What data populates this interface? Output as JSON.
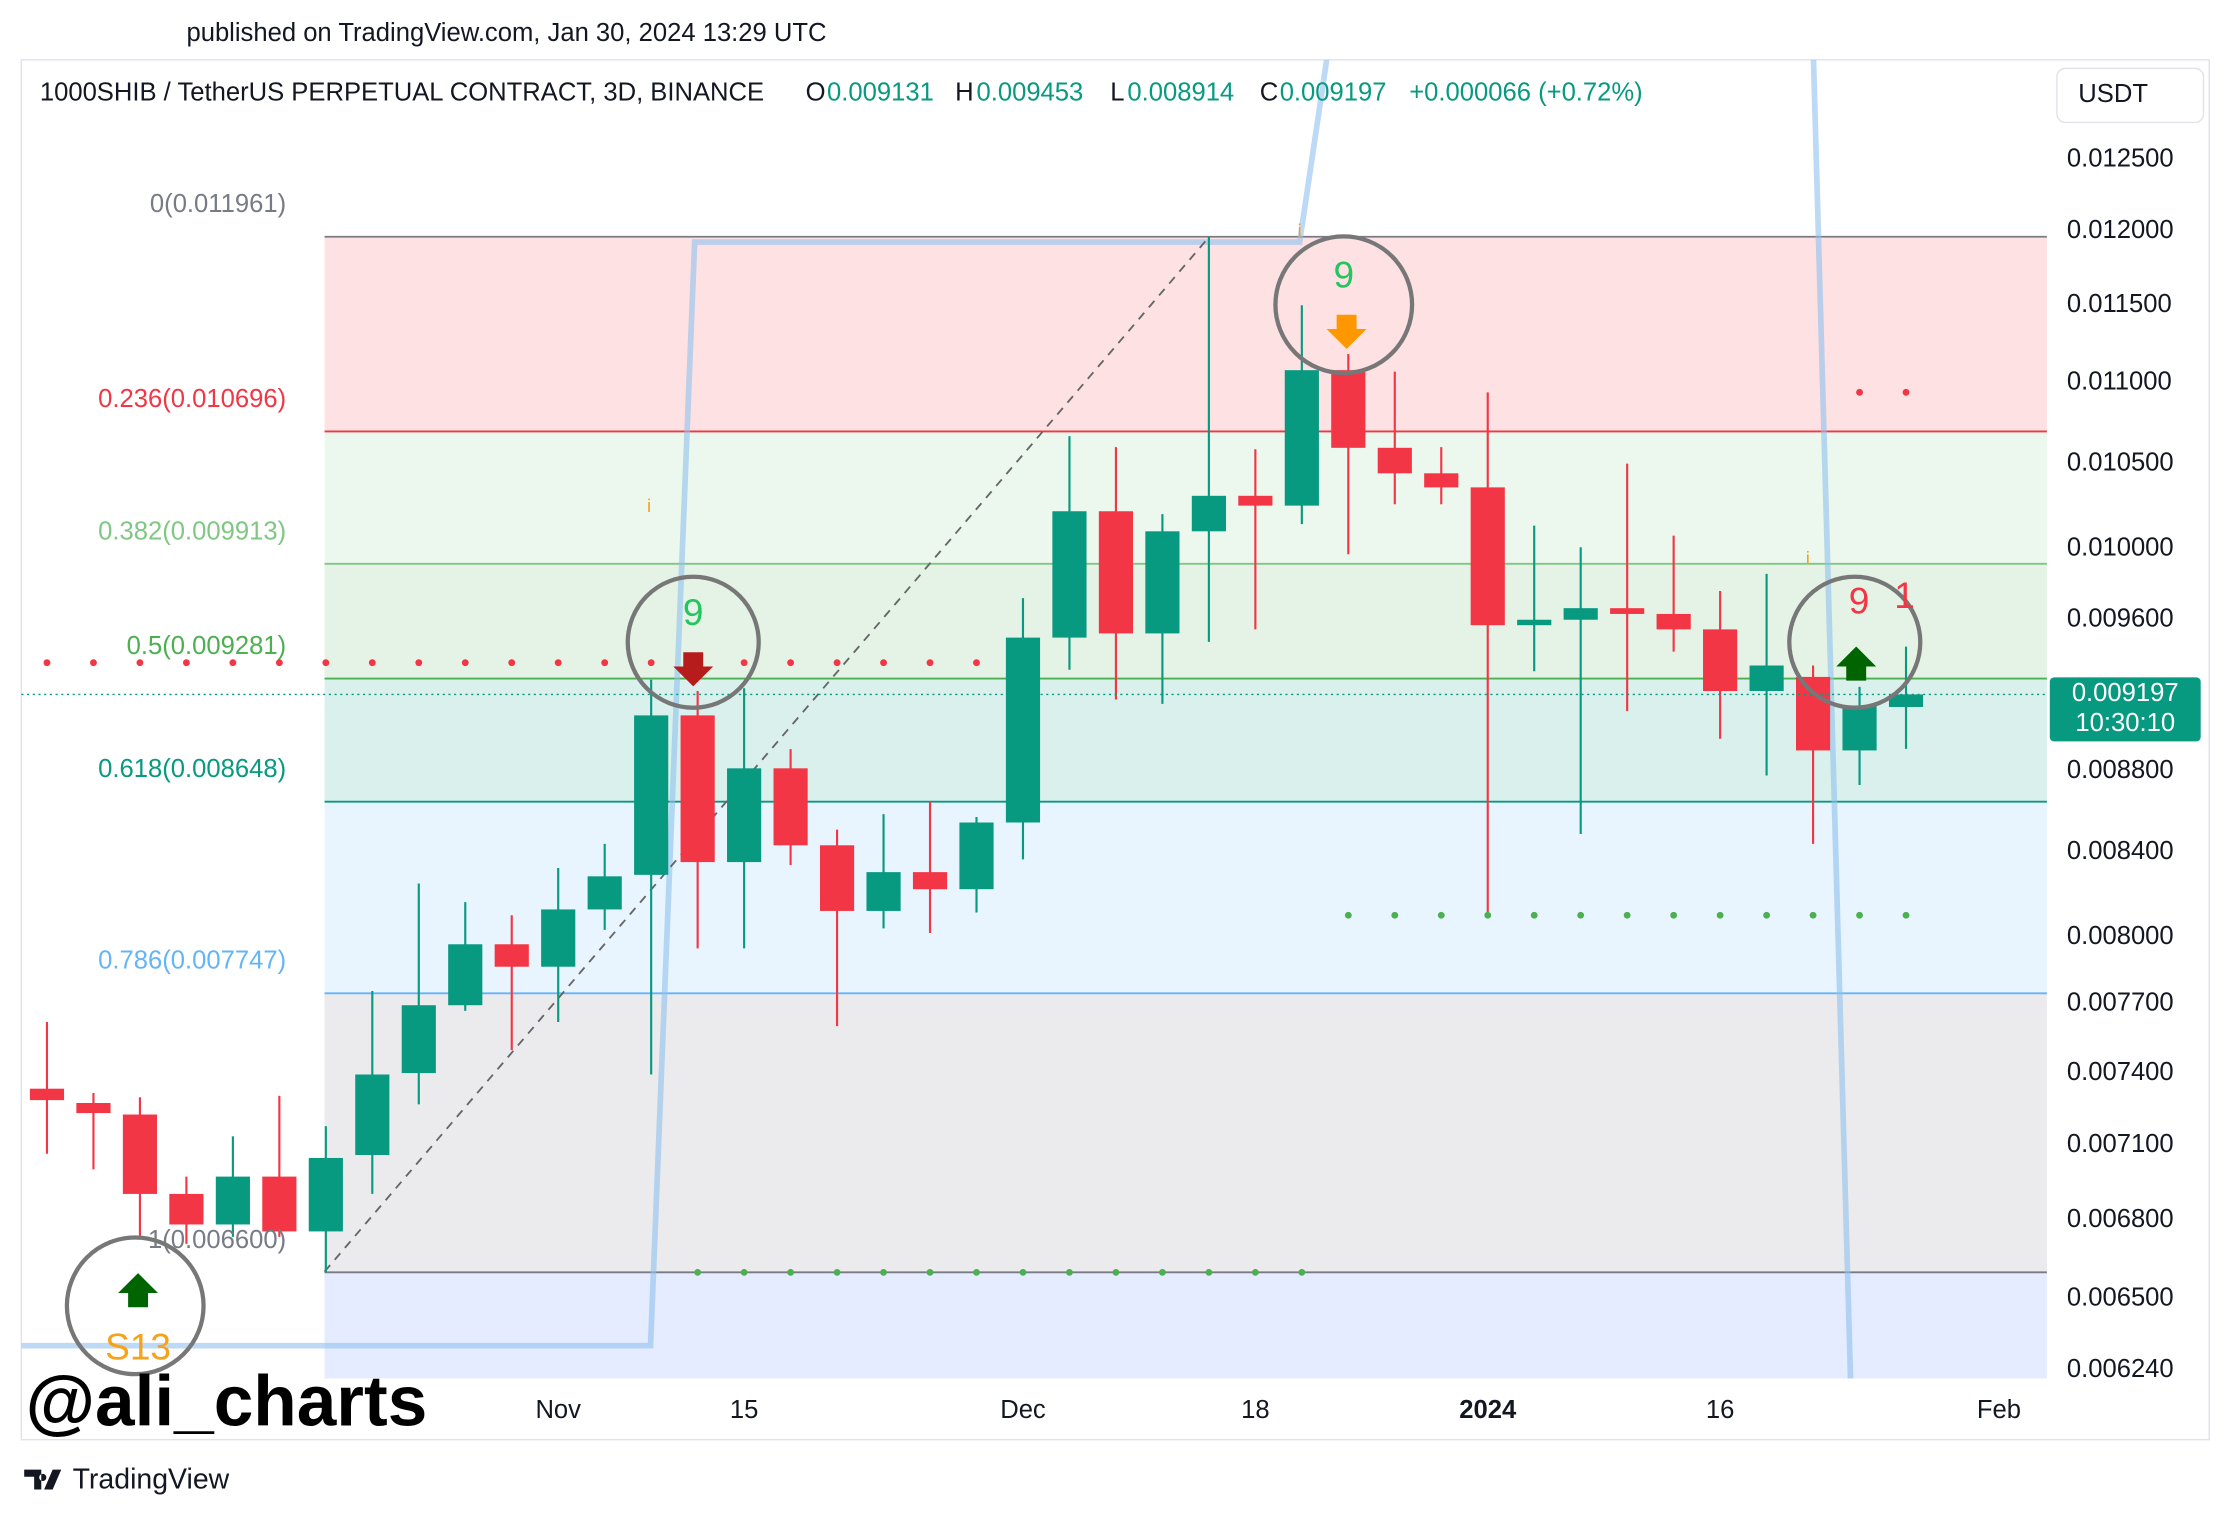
{
  "chart_data": {
    "type": "candlestick",
    "published": "published on TradingView.com, Jan 30, 2024 13:29 UTC",
    "title": "1000SHIB / TetherUS PERPETUAL CONTRACT, 3D, BINANCE",
    "ohlc_labels": [
      "O",
      "H",
      "L",
      "C"
    ],
    "change": "+0.000066 (+0.72%)",
    "currency": "USDT",
    "countdown": "10:30:10",
    "author": "@ali_charts",
    "brand": "TradingView",
    "log_scale": true,
    "up_color": "#089981",
    "down_color": "#f23645",
    "categories": [
      null,
      null,
      null,
      null,
      null,
      null,
      null,
      null,
      null,
      null,
      null,
      "Nov",
      null,
      null,
      null,
      "15",
      null,
      null,
      null,
      null,
      null,
      "Dec",
      null,
      null,
      null,
      null,
      "18",
      null,
      null,
      null,
      null,
      "2024",
      null,
      null,
      null,
      null,
      "16",
      null,
      null,
      null,
      null,
      null,
      "Feb"
    ],
    "open": [
      0.007334,
      0.007274,
      0.007226,
      0.006904,
      0.006784,
      0.006973,
      0.006757,
      0.00706,
      0.0074,
      0.007694,
      0.007968,
      0.007866,
      0.008129,
      0.008292,
      0.009087,
      0.008353,
      0.008815,
      0.008434,
      0.008122,
      0.008305,
      0.008224,
      0.008545,
      0.009502,
      0.010217,
      0.009525,
      0.0101,
      0.010308,
      0.01025,
      0.011079,
      0.010596,
      0.010442,
      0.010358,
      0.00957,
      0.0096,
      0.009664,
      0.009632,
      0.009547,
      0.009215,
      0.00929,
      0.008906,
      0.009131,
      null,
      null
    ],
    "high": [
      0.00762,
      0.007316,
      0.007298,
      0.006973,
      0.007136,
      0.007304,
      0.007178,
      0.007757,
      0.008251,
      0.008163,
      0.008102,
      0.008325,
      0.008441,
      0.009275,
      0.009215,
      0.00923,
      0.008913,
      0.00851,
      0.008586,
      0.008648,
      0.008572,
      0.00972,
      0.010667,
      0.0106,
      0.0102,
      0.011961,
      0.010587,
      0.0115,
      0.011182,
      0.01107,
      0.0106,
      0.010939,
      0.010133,
      0.010008,
      0.0105,
      0.010075,
      0.00976,
      0.009856,
      0.009351,
      0.009237,
      0.009453,
      null,
      null
    ],
    "low": [
      0.007065,
      0.007002,
      0.006736,
      0.006709,
      0.006736,
      0.006736,
      0.0066,
      0.006904,
      0.007268,
      0.007669,
      0.007498,
      0.00762,
      0.008034,
      0.007394,
      0.007949,
      0.007949,
      0.008339,
      0.007602,
      0.008041,
      0.00802,
      0.008115,
      0.008366,
      0.009328,
      0.00917,
      0.009147,
      0.009479,
      0.009547,
      0.010142,
      0.009968,
      0.010258,
      0.010258,
      0.008102,
      0.00932,
      0.008489,
      0.009109,
      0.009426,
      0.008966,
      0.008779,
      0.008441,
      0.008731,
      0.008914,
      null,
      null
    ],
    "close": [
      0.007286,
      0.007232,
      0.006904,
      0.006784,
      0.006973,
      0.006757,
      0.007048,
      0.007394,
      0.007694,
      0.007968,
      0.007866,
      0.008129,
      0.008285,
      0.009087,
      0.008353,
      0.008815,
      0.008434,
      0.008122,
      0.008305,
      0.008224,
      0.008545,
      0.009502,
      0.010217,
      0.009525,
      0.0101,
      0.010308,
      0.01025,
      0.011079,
      0.010596,
      0.010442,
      0.010358,
      0.00957,
      0.0096,
      0.009664,
      0.009632,
      0.009547,
      0.009215,
      0.009351,
      0.008906,
      0.009139,
      0.009197,
      null,
      null
    ],
    "ylim": [
      0.00621,
      0.01324
    ],
    "yticks": [
      {
        "value": 0.0125,
        "label": "0.012500"
      },
      {
        "value": 0.012,
        "label": "0.012000"
      },
      {
        "value": 0.0115,
        "label": "0.011500"
      },
      {
        "value": 0.011,
        "label": "0.011000"
      },
      {
        "value": 0.0105,
        "label": "0.010500"
      },
      {
        "value": 0.01,
        "label": "0.010000"
      },
      {
        "value": 0.0096,
        "label": "0.009600"
      },
      {
        "value": 0.0088,
        "label": "0.008800"
      },
      {
        "value": 0.0084,
        "label": "0.008400"
      },
      {
        "value": 0.008,
        "label": "0.008000"
      },
      {
        "value": 0.0077,
        "label": "0.007700"
      },
      {
        "value": 0.0074,
        "label": "0.007400"
      },
      {
        "value": 0.0071,
        "label": "0.007100"
      },
      {
        "value": 0.0068,
        "label": "0.006800"
      },
      {
        "value": 0.0065,
        "label": "0.006500"
      },
      {
        "value": 0.00624,
        "label": "0.006240"
      }
    ],
    "fib_levels": [
      {
        "label": "0(0.011961)",
        "value": 0.011961,
        "color": "#787b86"
      },
      {
        "label": "0.236(0.010696)",
        "value": 0.010696,
        "color": "#f23645"
      },
      {
        "label": "0.382(0.009913)",
        "value": 0.009913,
        "color": "#81c784"
      },
      {
        "label": "0.5(0.009281)",
        "value": 0.009281,
        "color": "#4caf50"
      },
      {
        "label": "0.618(0.008648)",
        "value": 0.008648,
        "color": "#089981"
      },
      {
        "label": "0.786(0.007747)",
        "value": 0.007747,
        "color": "#64b5f6"
      },
      {
        "label": "1(0.006600)",
        "value": 0.0066,
        "color": "#787b86"
      }
    ],
    "td_levels": [
      {
        "value": 0.009366,
        "start": 0,
        "end": 20,
        "color": "#f23645"
      },
      {
        "value": 0.0066,
        "start": 14,
        "end": 27,
        "color": "#4caf50"
      },
      {
        "value": 0.008102,
        "start": 28,
        "end": 40,
        "color": "#4caf50"
      },
      {
        "value": 0.010939,
        "start": 39,
        "end": 40,
        "color": "#f23645"
      }
    ],
    "annotations": [
      "9",
      "9",
      "9",
      "S13",
      "1"
    ],
    "info_markers": [
      "i",
      "i",
      "i"
    ]
  }
}
